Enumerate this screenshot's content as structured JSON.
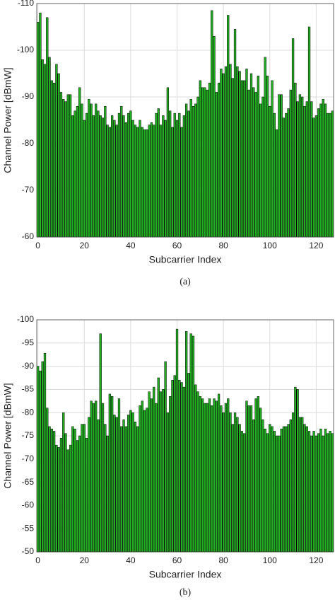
{
  "chart_data": [
    {
      "type": "bar",
      "xlabel": "Subcarrier Index",
      "ylabel": "Channel Power [dBmW]",
      "caption": "(a)",
      "color": "#22b022",
      "xlim": [
        -0.5,
        127.5
      ],
      "xticks": [
        0,
        20,
        40,
        60,
        80,
        100,
        120
      ],
      "ylim": [
        -60,
        -110
      ],
      "yticks": [
        -110,
        -100,
        -90,
        -80,
        -70,
        -60
      ],
      "grid": true,
      "x": [
        0,
        1,
        2,
        3,
        4,
        5,
        6,
        7,
        8,
        9,
        10,
        11,
        12,
        13,
        14,
        15,
        16,
        17,
        18,
        19,
        20,
        21,
        22,
        23,
        24,
        25,
        26,
        27,
        28,
        29,
        30,
        31,
        32,
        33,
        34,
        35,
        36,
        37,
        38,
        39,
        40,
        41,
        42,
        43,
        44,
        45,
        46,
        47,
        48,
        49,
        50,
        51,
        52,
        53,
        54,
        55,
        56,
        57,
        58,
        59,
        60,
        61,
        62,
        63,
        64,
        65,
        66,
        67,
        68,
        69,
        70,
        71,
        72,
        73,
        74,
        75,
        76,
        77,
        78,
        79,
        80,
        81,
        82,
        83,
        84,
        85,
        86,
        87,
        88,
        89,
        90,
        91,
        92,
        93,
        94,
        95,
        96,
        97,
        98,
        99,
        100,
        101,
        102,
        103,
        104,
        105,
        106,
        107,
        108,
        109,
        110,
        111,
        112,
        113,
        114,
        115,
        116,
        117,
        118,
        119,
        120,
        121,
        122,
        123,
        124,
        125,
        126,
        127
      ],
      "values": [
        -106,
        -108,
        -98,
        -97,
        -107,
        -98.5,
        -93.5,
        -93,
        -97,
        -95,
        -91,
        -89.5,
        -89,
        -90.5,
        -90.5,
        -86,
        -87,
        -88,
        -92,
        -88.5,
        -85,
        -86.5,
        -89.5,
        -88.5,
        -86,
        -88.5,
        -87,
        -86,
        -85.5,
        -88,
        -84,
        -83.5,
        -86,
        -85,
        -84,
        -86.5,
        -88,
        -86,
        -84.5,
        -86.5,
        -87,
        -85,
        -84,
        -83.5,
        -85,
        -83.5,
        -83,
        -83,
        -84,
        -84.5,
        -84,
        -86.5,
        -87.5,
        -84,
        -86,
        -85,
        -92,
        -87,
        -83.5,
        -86.5,
        -85,
        -86.5,
        -83.5,
        -86,
        -88.5,
        -87,
        -89.5,
        -88,
        -88.5,
        -90,
        -93.5,
        -92,
        -92,
        -91.5,
        -93,
        -108.5,
        -103,
        -91,
        -93,
        -96,
        -95,
        -96.5,
        -107.5,
        -97,
        -94,
        -104.5,
        -96.5,
        -95.5,
        -93.5,
        -93.5,
        -96,
        -91.5,
        -95,
        -92,
        -91,
        -94.5,
        -88.5,
        -90,
        -98.5,
        -94.5,
        -88,
        -93.5,
        -86.5,
        -83,
        -90.5,
        -90.5,
        -85.5,
        -86.5,
        -87.5,
        -91.5,
        -102.5,
        -93,
        -89,
        -90.5,
        -90,
        -88,
        -89,
        -105,
        -89,
        -85.5,
        -86,
        -87.5,
        -88.5,
        -89.5,
        -88.5,
        -86.5,
        -86.5,
        -87
      ]
    },
    {
      "type": "bar",
      "xlabel": "Subcarrier Index",
      "ylabel": "Channel Power [dBmW]",
      "caption": "(b)",
      "color": "#22b022",
      "xlim": [
        -0.5,
        127.5
      ],
      "xticks": [
        0,
        20,
        40,
        60,
        80,
        100,
        120
      ],
      "ylim": [
        -50,
        -100
      ],
      "yticks": [
        -100,
        -95,
        -90,
        -85,
        -80,
        -75,
        -70,
        -65,
        -60,
        -55,
        -50
      ],
      "grid": true,
      "x": [
        0,
        1,
        2,
        3,
        4,
        5,
        6,
        7,
        8,
        9,
        10,
        11,
        12,
        13,
        14,
        15,
        16,
        17,
        18,
        19,
        20,
        21,
        22,
        23,
        24,
        25,
        26,
        27,
        28,
        29,
        30,
        31,
        32,
        33,
        34,
        35,
        36,
        37,
        38,
        39,
        40,
        41,
        42,
        43,
        44,
        45,
        46,
        47,
        48,
        49,
        50,
        51,
        52,
        53,
        54,
        55,
        56,
        57,
        58,
        59,
        60,
        61,
        62,
        63,
        64,
        65,
        66,
        67,
        68,
        69,
        70,
        71,
        72,
        73,
        74,
        75,
        76,
        77,
        78,
        79,
        80,
        81,
        82,
        83,
        84,
        85,
        86,
        87,
        88,
        89,
        90,
        91,
        92,
        93,
        94,
        95,
        96,
        97,
        98,
        99,
        100,
        101,
        102,
        103,
        104,
        105,
        106,
        107,
        108,
        109,
        110,
        111,
        112,
        113,
        114,
        115,
        116,
        117,
        118,
        119,
        120,
        121,
        122,
        123,
        124,
        125,
        126,
        127
      ],
      "values": [
        -90,
        -89,
        -91,
        -92.8,
        -81,
        -77,
        -76.5,
        -76,
        -73,
        -72.5,
        -74.5,
        -80,
        -75.5,
        -72,
        -73,
        -77,
        -76.5,
        -74,
        -75,
        -77.5,
        -77.5,
        -74.5,
        -79,
        -82.5,
        -82,
        -82.5,
        -78.5,
        -97,
        -82,
        -77.5,
        -75,
        -84,
        -83.5,
        -79.5,
        -79,
        -83,
        -77,
        -78.5,
        -77,
        -79.5,
        -80.5,
        -80,
        -78,
        -77,
        -81.5,
        -82.5,
        -80.5,
        -81,
        -84.5,
        -83,
        -85.5,
        -82,
        -87.5,
        -84.5,
        -85,
        -91,
        -80,
        -83.5,
        -87,
        -88,
        -98,
        -87,
        -86.5,
        -85.5,
        -97.5,
        -88.5,
        -97,
        -96.5,
        -86,
        -84.5,
        -83.5,
        -83,
        -82,
        -82,
        -83,
        -81.5,
        -83,
        -82.5,
        -84,
        -81.5,
        -80,
        -82,
        -83,
        -80,
        -77.5,
        -80,
        -79,
        -77.5,
        -76,
        -75.5,
        -82.5,
        -81.5,
        -81.5,
        -78.5,
        -83,
        -83.5,
        -81,
        -78.5,
        -76.5,
        -75.5,
        -77.5,
        -77,
        -76,
        -75,
        -75,
        -76.5,
        -77,
        -77,
        -77.5,
        -78.5,
        -80,
        -85.5,
        -85,
        -79,
        -79,
        -77.5,
        -77,
        -76,
        -75,
        -76,
        -75,
        -75.5,
        -76.5,
        -75,
        -76.5,
        -75.5,
        -76,
        -75.5
      ]
    }
  ]
}
